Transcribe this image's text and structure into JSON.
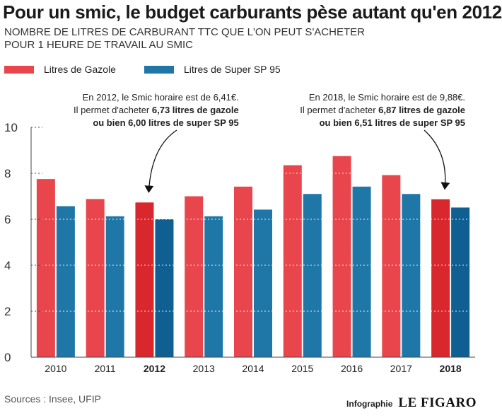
{
  "header": {
    "title": "Pour un smic, le budget carburants pèse autant qu'en 2012",
    "subtitle_line1": "NOMBRE DE LITRES DE CARBURANT TTC QUE L'ON PEUT S'ACHETER",
    "subtitle_line2": "POUR 1 HEURE DE TRAVAIL AU SMIC"
  },
  "legend": {
    "gazole": "Litres de Gazole",
    "super": "Litres de Super SP 95"
  },
  "annotations": {
    "left": {
      "line1": "En 2012, le Smic horaire est de 6,41€.",
      "line2_prefix": "Il permet d'acheter ",
      "line2_bold": "6,73 litres de gazole",
      "line3_bold": "ou bien 6,00  litres de super SP 95"
    },
    "right": {
      "line1": "En 2018, le Smic horaire est de 9,88€.",
      "line2_prefix": "Il permet d'acheter ",
      "line2_bold": "6,87  litres de gazole",
      "line3_bold": "ou bien 6,51 litres de super SP 95"
    }
  },
  "chart_data": {
    "type": "bar",
    "categories": [
      "2010",
      "2011",
      "2012",
      "2013",
      "2014",
      "2015",
      "2016",
      "2017",
      "2018"
    ],
    "highlighted_categories": [
      "2012",
      "2018"
    ],
    "series": [
      {
        "name": "Litres de Gazole",
        "values": [
          7.75,
          6.88,
          6.73,
          7.0,
          7.42,
          8.35,
          8.75,
          7.92,
          6.87
        ]
      },
      {
        "name": "Litres de Super SP 95",
        "values": [
          6.57,
          6.13,
          6.0,
          6.13,
          6.42,
          7.1,
          7.42,
          7.1,
          6.51
        ]
      }
    ],
    "colors": {
      "gazole": "#e8464c",
      "gazole_highlight": "#d9272e",
      "super": "#1f77a8",
      "super_highlight": "#0f5f93"
    },
    "ylim": [
      0,
      10
    ],
    "yticks": [
      "0",
      "2",
      "4",
      "6",
      "8",
      "10"
    ],
    "grid": true,
    "xlabel": "",
    "ylabel": ""
  },
  "footer": {
    "source": "Sources : Insee, UFIP",
    "credit_label": "Infographie",
    "credit_logo": "LE FIGARO"
  }
}
